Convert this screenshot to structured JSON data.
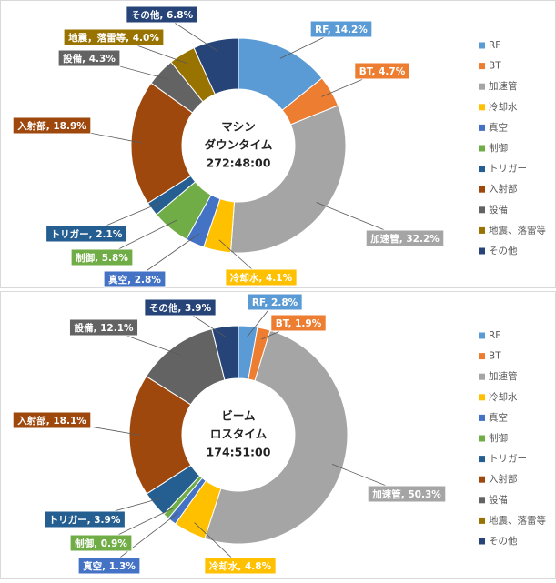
{
  "chart_data": [
    {
      "type": "donut",
      "center_text": [
        "マシン",
        "ダウンタイム",
        "272:48:00"
      ],
      "categories": [
        "RF",
        "BT",
        "加速管",
        "冷却水",
        "真空",
        "制御",
        "トリガー",
        "入射部",
        "設備",
        "地震、落雷等",
        "その他"
      ],
      "values": [
        14.2,
        4.7,
        32.2,
        4.1,
        2.8,
        5.8,
        2.1,
        18.9,
        4.3,
        4.0,
        6.8
      ],
      "value_labels": [
        "RF, 14.2%",
        "BT, 4.7%",
        "加速管, 32.2%",
        "冷却水, 4.1%",
        "真空, 2.8%",
        "制御, 5.8%",
        "トリガー, 2.1%",
        "入射部, 18.9%",
        "設備, 4.3%",
        "地震，落雷等, 4.0%",
        "その他, 6.8%"
      ],
      "colors": [
        "#5b9bd5",
        "#ed7d31",
        "#a5a5a5",
        "#ffc000",
        "#4472c4",
        "#70ad47",
        "#255e91",
        "#9e480e",
        "#636363",
        "#997300",
        "#264478"
      ],
      "legend": "right"
    },
    {
      "type": "donut",
      "center_text": [
        "ビーム",
        "ロスタイム",
        "174:51:00"
      ],
      "categories": [
        "RF",
        "BT",
        "加速管",
        "冷却水",
        "真空",
        "制御",
        "トリガー",
        "入射部",
        "設備",
        "地震、落雷等",
        "その他"
      ],
      "values": [
        2.8,
        1.9,
        50.3,
        4.8,
        1.3,
        0.9,
        3.9,
        18.1,
        12.1,
        0,
        3.9
      ],
      "value_labels": [
        "RF, 2.8%",
        "BT, 1.9%",
        "加速管, 50.3%",
        "冷却水, 4.8%",
        "真空, 1.3%",
        "制御, 0.9%",
        "トリガー, 3.9%",
        "入射部, 18.1%",
        "設備, 12.1%",
        null,
        "その他, 3.9%"
      ],
      "colors": [
        "#5b9bd5",
        "#ed7d31",
        "#a5a5a5",
        "#ffc000",
        "#4472c4",
        "#70ad47",
        "#255e91",
        "#9e480e",
        "#636363",
        "#997300",
        "#264478"
      ],
      "legend": "right"
    }
  ]
}
